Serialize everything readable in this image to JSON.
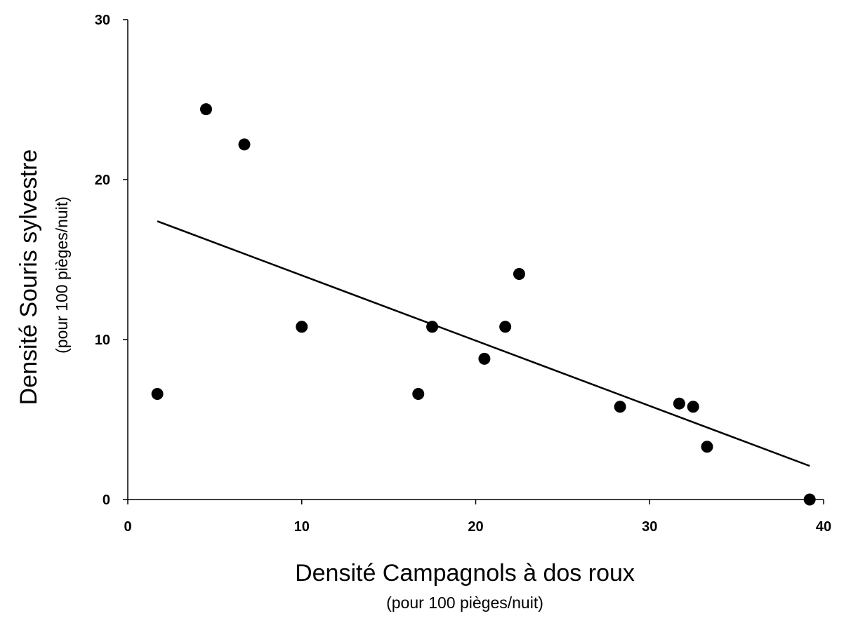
{
  "chart_data": {
    "type": "scatter",
    "title": "",
    "xlabel": "Densité Campagnols à dos roux",
    "xlabel_sub": "(pour 100 pièges/nuit)",
    "ylabel": "Densité Souris sylvestre",
    "ylabel_sub": "(pour 100 pièges/nuit)",
    "xlim": [
      0,
      40
    ],
    "ylim": [
      0,
      30
    ],
    "xticks": [
      0,
      10,
      20,
      30,
      40
    ],
    "yticks": [
      0,
      10,
      20,
      30
    ],
    "xtick_labels": [
      "0",
      "10",
      "20",
      "30",
      "40"
    ],
    "ytick_labels": [
      "0",
      "10",
      "20",
      "30"
    ],
    "grid": false,
    "legend": "none",
    "point_color": "#000000",
    "points": [
      {
        "x": 1.7,
        "y": 6.6
      },
      {
        "x": 4.5,
        "y": 24.4
      },
      {
        "x": 6.7,
        "y": 22.2
      },
      {
        "x": 10.0,
        "y": 10.8
      },
      {
        "x": 16.7,
        "y": 6.6
      },
      {
        "x": 17.5,
        "y": 10.8
      },
      {
        "x": 20.5,
        "y": 8.8
      },
      {
        "x": 21.7,
        "y": 10.8
      },
      {
        "x": 22.5,
        "y": 14.1
      },
      {
        "x": 28.3,
        "y": 5.8
      },
      {
        "x": 31.7,
        "y": 6.0
      },
      {
        "x": 32.5,
        "y": 5.8
      },
      {
        "x": 33.3,
        "y": 3.3
      },
      {
        "x": 39.2,
        "y": 0.0
      }
    ],
    "trendline": {
      "x": [
        1.7,
        39.2
      ],
      "y": [
        17.4,
        2.1
      ]
    }
  }
}
